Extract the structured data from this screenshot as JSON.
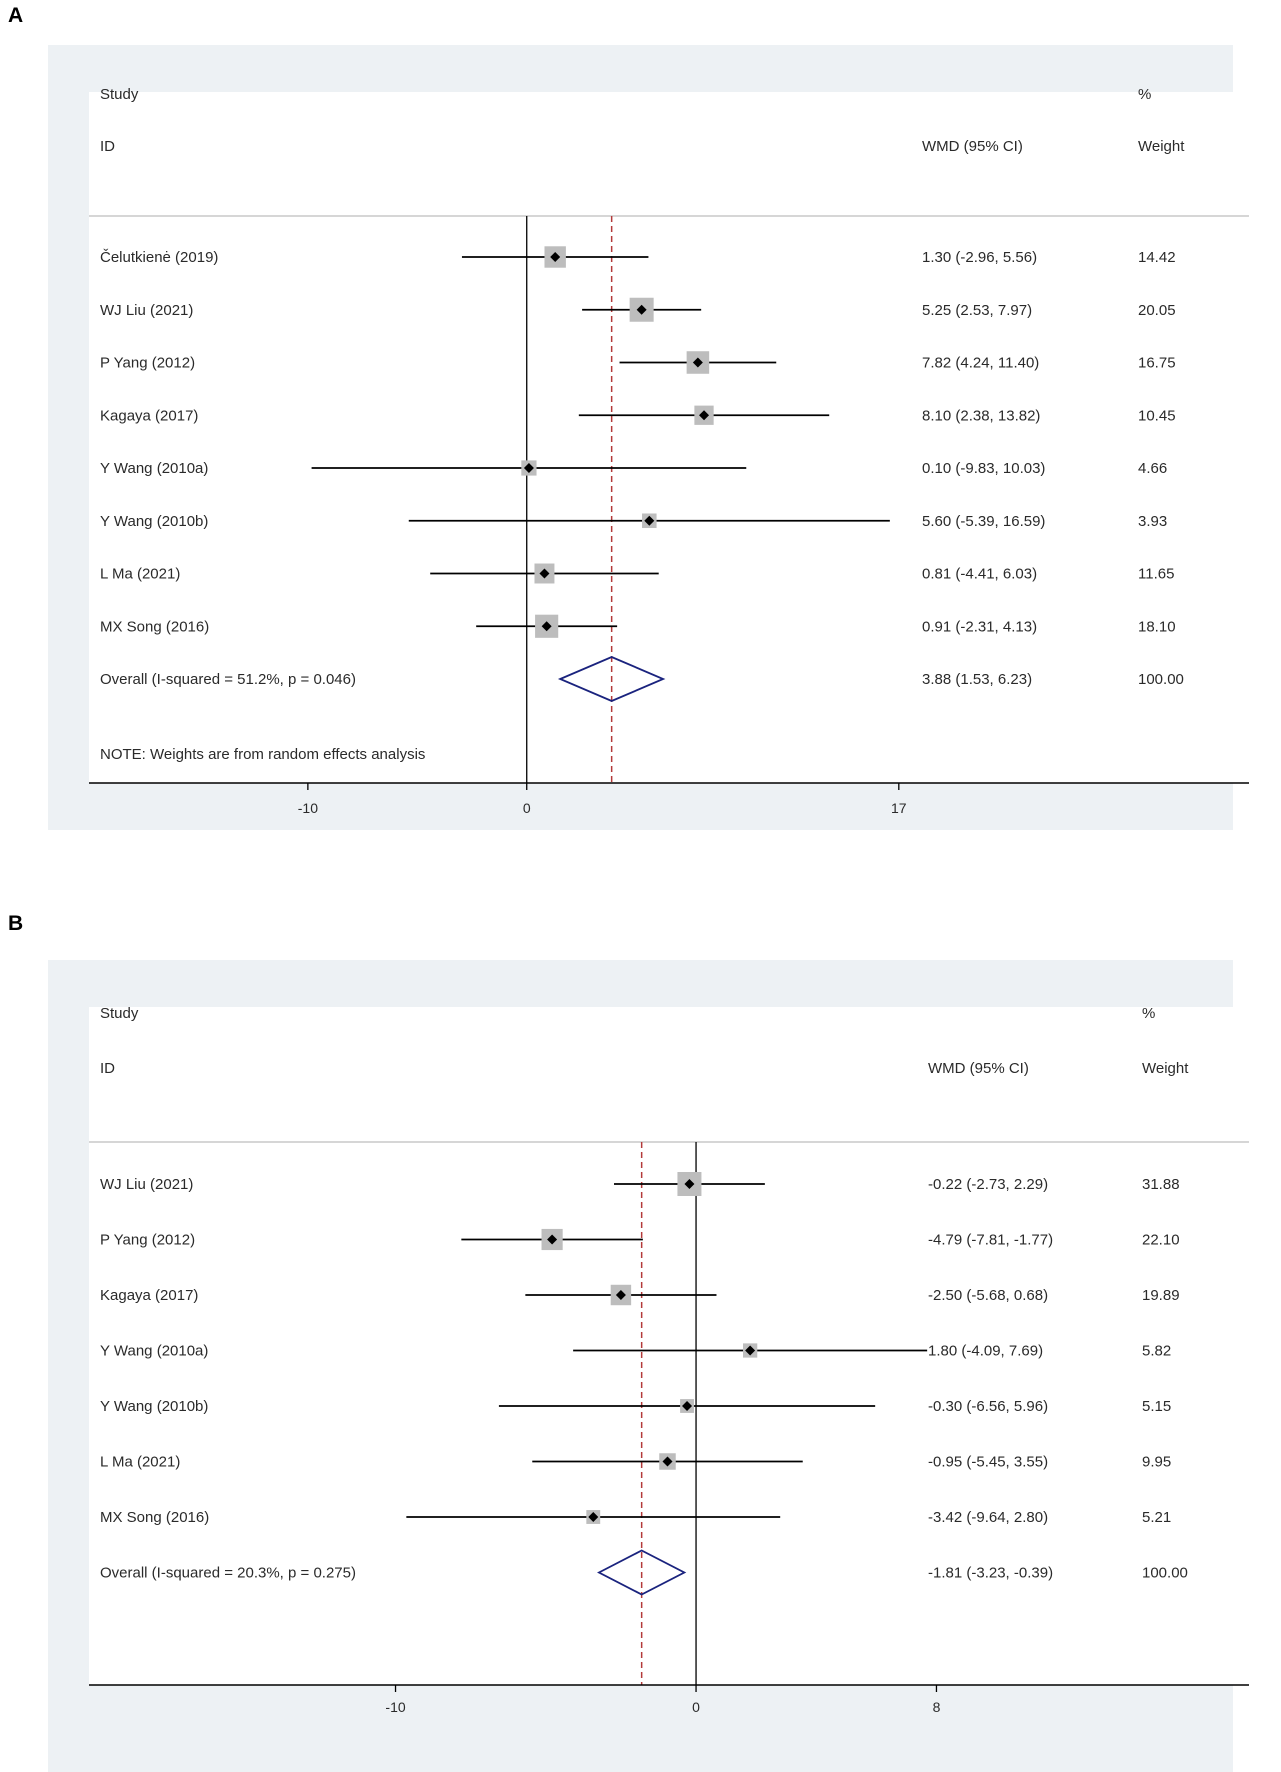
{
  "chart_data": [
    {
      "type": "forest",
      "panel_label": "A",
      "header": {
        "study_label": "Study",
        "id_label": "ID",
        "effect_label": "WMD (95% CI)",
        "percent_label": "%",
        "weight_label": "Weight"
      },
      "studies": [
        {
          "name": "Čelutkienė  (2019)",
          "est": 1.3,
          "lo": -2.96,
          "hi": 5.56,
          "ci_text": "1.30 (-2.96, 5.56)",
          "weight": 14.42,
          "weight_text": "14.42"
        },
        {
          "name": "WJ Liu  (2021)",
          "est": 5.25,
          "lo": 2.53,
          "hi": 7.97,
          "ci_text": "5.25 (2.53, 7.97)",
          "weight": 20.05,
          "weight_text": "20.05"
        },
        {
          "name": "P Yang  (2012)",
          "est": 7.82,
          "lo": 4.24,
          "hi": 11.4,
          "ci_text": "7.82 (4.24, 11.40)",
          "weight": 16.75,
          "weight_text": "16.75"
        },
        {
          "name": "Kagaya  (2017)",
          "est": 8.1,
          "lo": 2.38,
          "hi": 13.82,
          "ci_text": "8.10 (2.38, 13.82)",
          "weight": 10.45,
          "weight_text": "10.45"
        },
        {
          "name": "Y Wang  (2010a)",
          "est": 0.1,
          "lo": -9.83,
          "hi": 10.03,
          "ci_text": "0.10 (-9.83, 10.03)",
          "weight": 4.66,
          "weight_text": "4.66"
        },
        {
          "name": "Y Wang  (2010b)",
          "est": 5.6,
          "lo": -5.39,
          "hi": 16.59,
          "ci_text": "5.60 (-5.39, 16.59)",
          "weight": 3.93,
          "weight_text": "3.93"
        },
        {
          "name": "L Ma  (2021)",
          "est": 0.81,
          "lo": -4.41,
          "hi": 6.03,
          "ci_text": "0.81 (-4.41, 6.03)",
          "weight": 11.65,
          "weight_text": "11.65"
        },
        {
          "name": "MX Song  (2016)",
          "est": 0.91,
          "lo": -2.31,
          "hi": 4.13,
          "ci_text": "0.91 (-2.31, 4.13)",
          "weight": 18.1,
          "weight_text": "18.10"
        }
      ],
      "overall": {
        "label": "Overall  (I-squared = 51.2%, p = 0.046)",
        "est": 3.88,
        "lo": 1.53,
        "hi": 6.23,
        "ci_text": "3.88 (1.53, 6.23)",
        "weight_text": "100.00"
      },
      "note": "NOTE: Weights are from random effects analysis",
      "xaxis": {
        "min": -20,
        "max": 33,
        "ticks": [
          -10,
          0,
          17
        ],
        "tick_labels": [
          "-10",
          "0",
          "17"
        ]
      },
      "colors": {
        "frame": "#edf1f4",
        "box": "#bdbdbd",
        "dash": "#b33a3a",
        "diamond": "#1a237e",
        "line": "#000000"
      }
    },
    {
      "type": "forest",
      "panel_label": "B",
      "header": {
        "study_label": "Study",
        "id_label": "ID",
        "effect_label": "WMD (95% CI)",
        "percent_label": "%",
        "weight_label": "Weight"
      },
      "studies": [
        {
          "name": "WJ Liu  (2021)",
          "est": -0.22,
          "lo": -2.73,
          "hi": 2.29,
          "ci_text": "-0.22 (-2.73, 2.29)",
          "weight": 31.88,
          "weight_text": "31.88"
        },
        {
          "name": "P Yang  (2012)",
          "est": -4.79,
          "lo": -7.81,
          "hi": -1.77,
          "ci_text": "-4.79 (-7.81, -1.77)",
          "weight": 22.1,
          "weight_text": "22.10"
        },
        {
          "name": "Kagaya  (2017)",
          "est": -2.5,
          "lo": -5.68,
          "hi": 0.68,
          "ci_text": "-2.50 (-5.68, 0.68)",
          "weight": 19.89,
          "weight_text": "19.89"
        },
        {
          "name": "Y Wang  (2010a)",
          "est": 1.8,
          "lo": -4.09,
          "hi": 7.69,
          "ci_text": "1.80 (-4.09, 7.69)",
          "weight": 5.82,
          "weight_text": "5.82"
        },
        {
          "name": "Y Wang  (2010b)",
          "est": -0.3,
          "lo": -6.56,
          "hi": 5.96,
          "ci_text": "-0.30 (-6.56, 5.96)",
          "weight": 5.15,
          "weight_text": "5.15"
        },
        {
          "name": "L Ma  (2021)",
          "est": -0.95,
          "lo": -5.45,
          "hi": 3.55,
          "ci_text": "-0.95 (-5.45, 3.55)",
          "weight": 9.95,
          "weight_text": "9.95"
        },
        {
          "name": "MX Song  (2016)",
          "est": -3.42,
          "lo": -9.64,
          "hi": 2.8,
          "ci_text": "-3.42 (-9.64, 2.80)",
          "weight": 5.21,
          "weight_text": "5.21"
        }
      ],
      "overall": {
        "label": "Overall  (I-squared = 20.3%, p = 0.275)",
        "est": -1.81,
        "lo": -3.23,
        "hi": -0.39,
        "ci_text": "-1.81 (-3.23, -0.39)",
        "weight_text": "100.00"
      },
      "note": "",
      "xaxis": {
        "min": -20.2,
        "max": 18.4,
        "ticks": [
          -10,
          0,
          8
        ],
        "tick_labels": [
          "-10",
          "0",
          "8"
        ]
      },
      "colors": {
        "frame": "#edf1f4",
        "box": "#bdbdbd",
        "dash": "#b33a3a",
        "diamond": "#1a237e",
        "line": "#000000"
      }
    }
  ]
}
